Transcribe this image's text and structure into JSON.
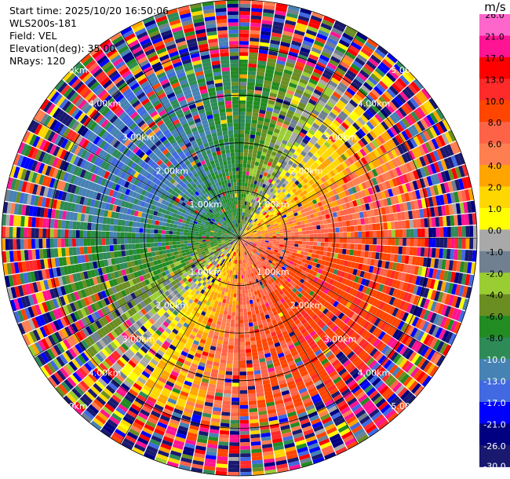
{
  "header": {
    "start_time": "Start time: 2025/10/20 16:50:06",
    "site": "WLS200s-181",
    "field": "Field: VEL",
    "elevation": "Elevation(deg): 35.00",
    "nrays": "NRays: 120"
  },
  "colorbar": {
    "unit": "m/s",
    "ticks": [
      "26.0",
      "21.0",
      "17.0",
      "13.0",
      "10.0",
      "8.0",
      "6.0",
      "4.0",
      "2.0",
      "1.0",
      "0.0",
      "-1.0",
      "-2.0",
      "-4.0",
      "-6.0",
      "-8.0",
      "-10.0",
      "-13.0",
      "-17.0",
      "-21.0",
      "-26.0",
      "-30.0"
    ],
    "colors": [
      "#ff66cc",
      "#ff1493",
      "#ff0000",
      "#ff2a2a",
      "#ff4500",
      "#ff6347",
      "#ff7f50",
      "#ffa500",
      "#ffd700",
      "#ffff00",
      "#a9a9a9",
      "#708090",
      "#9acd32",
      "#6b8e23",
      "#228b22",
      "#2e8b57",
      "#4682b4",
      "#4169e1",
      "#0000ff",
      "#000080",
      "#191970"
    ]
  },
  "chart_data": {
    "type": "heatmap",
    "title": "",
    "field": "VEL",
    "unit": "m/s",
    "elevation_deg": 35.0,
    "n_rays": 120,
    "range_max_km": 5.0,
    "range_rings_km": [
      1.0,
      2.0,
      3.0,
      4.0,
      5.0
    ],
    "ring_labels": [
      "1.00km",
      "2.00km",
      "3.00km",
      "4.00km",
      "5.00km"
    ],
    "value_range": [
      -30.0,
      26.0
    ],
    "pattern": {
      "positive_sector_azimuth_deg": [
        60,
        210
      ],
      "negative_sector_azimuth_deg": [
        240,
        30
      ],
      "noise_beyond_km": 4.0
    }
  }
}
